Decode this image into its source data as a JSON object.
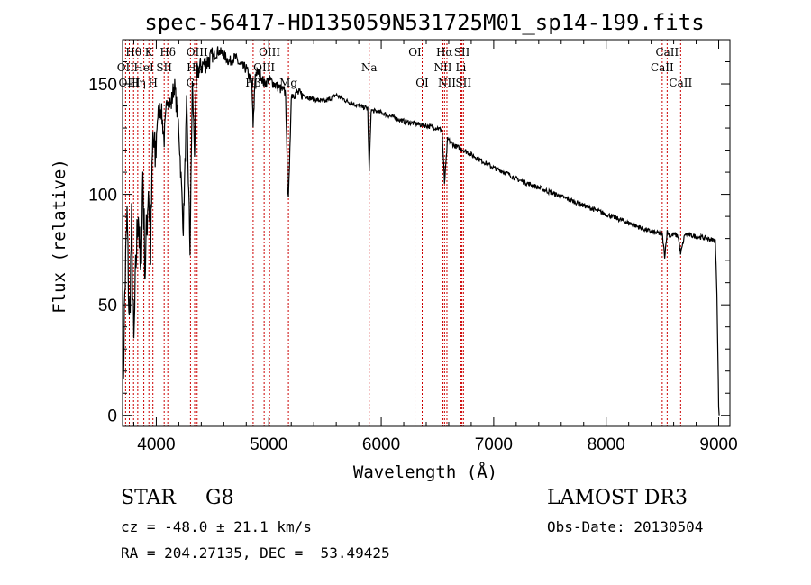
{
  "chart_data": {
    "type": "line",
    "title": "spec-56417-HD135059N531725M01_sp14-199.fits",
    "xlabel": "Wavelength (Å)",
    "ylabel": "Flux (relative)",
    "xlim": [
      3700,
      9100
    ],
    "ylim": [
      -5,
      170
    ],
    "x_ticks": [
      4000,
      5000,
      6000,
      7000,
      8000,
      9000
    ],
    "y_ticks": [
      0,
      50,
      100,
      150
    ],
    "grid": false,
    "series": [
      {
        "name": "flux",
        "x": [
          3700,
          3720,
          3740,
          3760,
          3780,
          3800,
          3820,
          3840,
          3860,
          3880,
          3900,
          3930,
          3950,
          3970,
          3990,
          4010,
          4040,
          4070,
          4100,
          4130,
          4160,
          4200,
          4240,
          4270,
          4300,
          4320,
          4340,
          4360,
          4400,
          4450,
          4500,
          4550,
          4600,
          4650,
          4700,
          4750,
          4800,
          4850,
          4861,
          4880,
          4920,
          4960,
          5000,
          5050,
          5100,
          5150,
          5167,
          5175,
          5184,
          5200,
          5250,
          5300,
          5400,
          5500,
          5600,
          5700,
          5800,
          5880,
          5893,
          5910,
          6000,
          6100,
          6200,
          6300,
          6400,
          6500,
          6540,
          6563,
          6590,
          6650,
          6700,
          6800,
          6900,
          7000,
          7100,
          7200,
          7300,
          7400,
          7500,
          7600,
          7700,
          7800,
          7900,
          8000,
          8100,
          8200,
          8300,
          8400,
          8498,
          8520,
          8542,
          8570,
          8600,
          8640,
          8662,
          8700,
          8800,
          8900,
          8970,
          8985,
          9000,
          9005
        ],
        "y": [
          0,
          55,
          90,
          40,
          85,
          30,
          70,
          95,
          60,
          110,
          65,
          105,
          75,
          125,
          115,
          135,
          140,
          125,
          145,
          140,
          150,
          130,
          85,
          140,
          75,
          150,
          120,
          155,
          158,
          160,
          162,
          165,
          163,
          160,
          162,
          158,
          157,
          150,
          130,
          155,
          155,
          150,
          152,
          150,
          148,
          146,
          105,
          100,
          110,
          145,
          146,
          145,
          143,
          142,
          145,
          142,
          140,
          139,
          110,
          138,
          137,
          135,
          133,
          132,
          131,
          130,
          129,
          105,
          125,
          122,
          121,
          118,
          115,
          112,
          110,
          107,
          105,
          103,
          101,
          99,
          97,
          95,
          93,
          91,
          89,
          87,
          85,
          83,
          82,
          72,
          83,
          81,
          82,
          81,
          73,
          82,
          81,
          80,
          79,
          55,
          3,
          0
        ]
      }
    ],
    "spectral_lines": [
      {
        "label": "Hθ",
        "x": 3798,
        "row": 1
      },
      {
        "label": "OII",
        "x": 3727,
        "row": 2
      },
      {
        "label": "OIII",
        "x": 3760,
        "row": 3
      },
      {
        "label": "K",
        "x": 3934,
        "row": 1
      },
      {
        "label": "HeI",
        "x": 3889,
        "row": 2
      },
      {
        "label": "Hη",
        "x": 3835,
        "row": 3
      },
      {
        "label": "H",
        "x": 3970,
        "row": 3
      },
      {
        "label": "Hδ",
        "x": 4102,
        "row": 1
      },
      {
        "label": "SII",
        "x": 4070,
        "row": 2
      },
      {
        "label": "OIII",
        "x": 4363,
        "row": 1
      },
      {
        "label": "Hγ",
        "x": 4341,
        "row": 2
      },
      {
        "label": "G",
        "x": 4304,
        "row": 3
      },
      {
        "label": "OIII",
        "x": 5007,
        "row": 1
      },
      {
        "label": "OIII",
        "x": 4959,
        "row": 2
      },
      {
        "label": "Hβ",
        "x": 4861,
        "row": 3
      },
      {
        "label": "Mg",
        "x": 5175,
        "row": 3
      },
      {
        "label": "Na",
        "x": 5893,
        "row": 2
      },
      {
        "label": "OI",
        "x": 6300,
        "row": 1
      },
      {
        "label": "OI",
        "x": 6364,
        "row": 3
      },
      {
        "label": "Hα",
        "x": 6563,
        "row": 1
      },
      {
        "label": "SII",
        "x": 6717,
        "row": 1
      },
      {
        "label": "NII",
        "x": 6548,
        "row": 2
      },
      {
        "label": "Li",
        "x": 6708,
        "row": 2
      },
      {
        "label": "NII",
        "x": 6584,
        "row": 3
      },
      {
        "label": "SII",
        "x": 6731,
        "row": 3
      },
      {
        "label": "CaII",
        "x": 8542,
        "row": 1
      },
      {
        "label": "CaII",
        "x": 8498,
        "row": 2
      },
      {
        "label": "CaII",
        "x": 8662,
        "row": 3
      }
    ]
  },
  "info": {
    "object_class": "STAR",
    "subclass": "G8",
    "survey": "LAMOST DR3",
    "redshift": "cz = -48.0 ± 21.1 km/s",
    "obs_date": "Obs-Date: 20130504",
    "coords": "RA = 204.27135, DEC =  53.49425"
  }
}
